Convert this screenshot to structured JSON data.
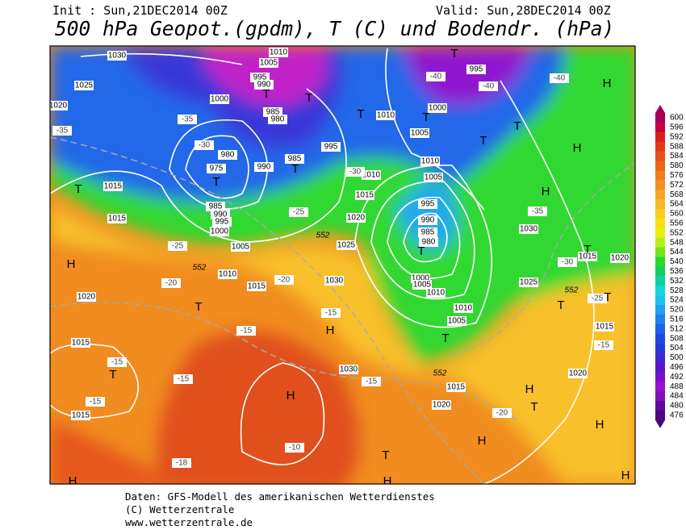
{
  "header": {
    "init": "Init : Sun,21DEC2014 00Z",
    "valid": "Valid: Sun,28DEC2014 00Z",
    "title": "500 hPa Geopot.(gpdm), T (C) und Bodendr. (hPa)"
  },
  "map": {
    "isobar_labels": [
      1030,
      1010,
      1005,
      995,
      990,
      1000,
      985,
      980,
      980,
      975,
      990,
      985,
      995,
      1010,
      1005,
      1010,
      1005,
      1010,
      1015,
      1020,
      1025,
      995,
      990,
      985,
      980,
      1000,
      1005,
      1010,
      1010,
      1005,
      1015,
      1015,
      985,
      990,
      995,
      1000,
      1005,
      1010,
      1015,
      1020,
      1030,
      1030,
      1015,
      1015,
      1015,
      1020,
      1020,
      1025,
      1030,
      1015,
      1020,
      1015,
      1000,
      995,
      1020,
      1025
    ],
    "temperature_labels": [
      -35,
      -30,
      -25,
      -20,
      -15,
      -40,
      -40,
      -40,
      -35,
      -30,
      -25,
      -20,
      -15,
      -15,
      -15,
      -15,
      -10,
      -15,
      -18,
      -35,
      -30,
      -25,
      -20,
      -15
    ],
    "contour_labels": [
      552,
      552,
      552,
      552
    ],
    "centers": [
      "H",
      "H",
      "H",
      "H",
      "T",
      "H",
      "H",
      "T",
      "T",
      "T",
      "T",
      "T",
      "T",
      "T",
      "T",
      "T",
      "T",
      "T",
      "T",
      "H",
      "T",
      "H",
      "T",
      "T",
      "H",
      "H",
      "T",
      "T",
      "T",
      "H",
      "H"
    ]
  },
  "legend": {
    "levels": [
      600,
      596,
      592,
      588,
      584,
      580,
      576,
      572,
      568,
      564,
      560,
      556,
      552,
      548,
      544,
      540,
      536,
      532,
      528,
      524,
      520,
      516,
      512,
      508,
      504,
      500,
      496,
      492,
      488,
      484,
      480,
      476
    ],
    "colors": [
      "#a8005a",
      "#c8003c",
      "#dc1e1e",
      "#e03a14",
      "#e6501a",
      "#ea6418",
      "#f07c1c",
      "#f49022",
      "#f6a426",
      "#f8b82a",
      "#fccc20",
      "#f8e010",
      "#e8f010",
      "#b4f01c",
      "#70e81c",
      "#28dc28",
      "#10d060",
      "#10d0a0",
      "#10d8d8",
      "#20c0f0",
      "#20a0f0",
      "#2080f0",
      "#2060e8",
      "#2048e0",
      "#2838d8",
      "#4028d0",
      "#5818c8",
      "#7810c8",
      "#9810d0",
      "#8010b8",
      "#6008a0",
      "#480880"
    ]
  },
  "footer": {
    "source": "Daten: GFS-Modell des amerikanischen Wetterdienstes",
    "copyright": "(C) Wetterzentrale",
    "url": "www.wetterzentrale.de"
  }
}
